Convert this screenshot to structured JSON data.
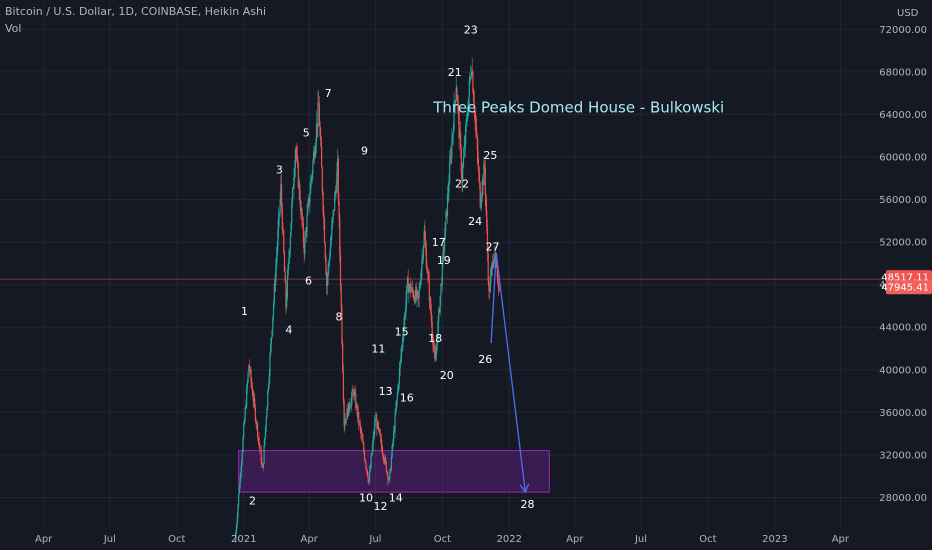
{
  "header": {
    "symbol_line": "Bitcoin / U.S. Dollar, 1D, COINBASE, Heikin Ashi",
    "indicator": "Vol"
  },
  "chart_data": {
    "type": "candlestick",
    "title": "Bitcoin / U.S. Dollar, 1D, COINBASE, Heikin Ashi",
    "currency_label": "USD",
    "ylim": [
      24000,
      74000
    ],
    "y_ticks": [
      28000,
      32000,
      36000,
      40000,
      44000,
      48000,
      52000,
      56000,
      60000,
      64000,
      68000,
      72000
    ],
    "y_tick_labels": [
      "28000.00",
      "32000.00",
      "36000.00",
      "40000.00",
      "44000.00",
      "48000.00",
      "52000.00",
      "56000.00",
      "60000.00",
      "64000.00",
      "68000.00",
      "72000.00"
    ],
    "x_range": [
      "2020-02-01",
      "2023-05-31"
    ],
    "x_ticks": [
      {
        "date": "2020-04-01",
        "label": "Apr"
      },
      {
        "date": "2020-07-01",
        "label": "Jul"
      },
      {
        "date": "2020-10-01",
        "label": "Oct"
      },
      {
        "date": "2021-01-01",
        "label": "2021"
      },
      {
        "date": "2021-04-01",
        "label": "Apr"
      },
      {
        "date": "2021-07-01",
        "label": "Jul"
      },
      {
        "date": "2021-10-01",
        "label": "Oct"
      },
      {
        "date": "2022-01-01",
        "label": "2022"
      },
      {
        "date": "2022-04-01",
        "label": "Apr"
      },
      {
        "date": "2022-07-01",
        "label": "Jul"
      },
      {
        "date": "2022-10-01",
        "label": "Oct"
      },
      {
        "date": "2023-01-01",
        "label": "2023"
      },
      {
        "date": "2023-04-01",
        "label": "Apr"
      }
    ],
    "price_path": [
      {
        "date": "2020-12-20",
        "price": 23800
      },
      {
        "date": "2021-01-08",
        "price": 40500
      },
      {
        "date": "2021-01-27",
        "price": 30500
      },
      {
        "date": "2021-02-21",
        "price": 57000
      },
      {
        "date": "2021-02-28",
        "price": 46000
      },
      {
        "date": "2021-03-13",
        "price": 61000
      },
      {
        "date": "2021-03-25",
        "price": 51500
      },
      {
        "date": "2021-04-14",
        "price": 64800
      },
      {
        "date": "2021-04-25",
        "price": 48000
      },
      {
        "date": "2021-05-10",
        "price": 59000
      },
      {
        "date": "2021-05-19",
        "price": 35000
      },
      {
        "date": "2021-06-01",
        "price": 38000
      },
      {
        "date": "2021-06-22",
        "price": 29500
      },
      {
        "date": "2021-07-01",
        "price": 35500
      },
      {
        "date": "2021-07-20",
        "price": 29500
      },
      {
        "date": "2021-08-14",
        "price": 48000
      },
      {
        "date": "2021-08-29",
        "price": 46500
      },
      {
        "date": "2021-09-06",
        "price": 52800
      },
      {
        "date": "2021-09-21",
        "price": 40500
      },
      {
        "date": "2021-10-20",
        "price": 67000
      },
      {
        "date": "2021-10-28",
        "price": 58000
      },
      {
        "date": "2021-11-10",
        "price": 69000
      },
      {
        "date": "2021-11-22",
        "price": 56000
      },
      {
        "date": "2021-11-28",
        "price": 59000
      },
      {
        "date": "2021-12-04",
        "price": 47000
      },
      {
        "date": "2021-12-10",
        "price": 51000
      },
      {
        "date": "2021-12-18",
        "price": 47900
      }
    ],
    "last_price": {
      "price": 48517.11,
      "label": "48517.11"
    },
    "prev_price": {
      "price": 47945.41,
      "label": "47945.41"
    },
    "wave_labels": [
      {
        "label": "1",
        "date": "2021-01-02",
        "price": 45500
      },
      {
        "label": "2",
        "date": "2021-01-13",
        "price": 27700
      },
      {
        "label": "3",
        "date": "2021-02-19",
        "price": 58800
      },
      {
        "label": "4",
        "date": "2021-03-04",
        "price": 43800
      },
      {
        "label": "5",
        "date": "2021-03-28",
        "price": 62300
      },
      {
        "label": "6",
        "date": "2021-03-31",
        "price": 48400
      },
      {
        "label": "7",
        "date": "2021-04-27",
        "price": 66000
      },
      {
        "label": "8",
        "date": "2021-05-12",
        "price": 45000
      },
      {
        "label": "9",
        "date": "2021-06-16",
        "price": 60600
      },
      {
        "label": "10",
        "date": "2021-06-18",
        "price": 28000
      },
      {
        "label": "11",
        "date": "2021-07-05",
        "price": 42000
      },
      {
        "label": "12",
        "date": "2021-07-08",
        "price": 27200
      },
      {
        "label": "13",
        "date": "2021-07-15",
        "price": 38000
      },
      {
        "label": "14",
        "date": "2021-07-29",
        "price": 28000
      },
      {
        "label": "15",
        "date": "2021-08-06",
        "price": 43600
      },
      {
        "label": "16",
        "date": "2021-08-13",
        "price": 37400
      },
      {
        "label": "17",
        "date": "2021-09-26",
        "price": 52000
      },
      {
        "label": "18",
        "date": "2021-09-21",
        "price": 43000
      },
      {
        "label": "19",
        "date": "2021-10-03",
        "price": 50300
      },
      {
        "label": "20",
        "date": "2021-10-07",
        "price": 39500
      },
      {
        "label": "21",
        "date": "2021-10-18",
        "price": 68000
      },
      {
        "label": "22",
        "date": "2021-10-28",
        "price": 57500
      },
      {
        "label": "23",
        "date": "2021-11-09",
        "price": 72000
      },
      {
        "label": "24",
        "date": "2021-11-15",
        "price": 54000
      },
      {
        "label": "25",
        "date": "2021-12-06",
        "price": 60200
      },
      {
        "label": "26",
        "date": "2021-11-29",
        "price": 41000
      },
      {
        "label": "27",
        "date": "2021-12-09",
        "price": 51600
      },
      {
        "label": "28",
        "date": "2022-01-26",
        "price": 27400
      }
    ],
    "support_zone": {
      "x_start": "2020-12-25",
      "x_end": "2022-02-25",
      "y_low": 28500,
      "y_high": 32400
    },
    "projection": [
      {
        "date": "2021-12-07",
        "price": 42500
      },
      {
        "date": "2021-12-14",
        "price": 51000
      },
      {
        "date": "2022-01-23",
        "price": 28500
      }
    ],
    "annotation": {
      "text": "Three Peaks Domed House - Bulkowski",
      "date": "2021-11-20",
      "price": 64000
    },
    "colors": {
      "background": "#151924",
      "grid": "#232632",
      "up": "#26a69a",
      "down": "#ef5350",
      "zone_fill": "#7b1fa2",
      "zone_border": "#9c27b0",
      "projection": "#4f6cf3",
      "annotation": "#a8e8f0",
      "price_line": "#ef5350",
      "axis_text": "#b2b5be"
    }
  }
}
